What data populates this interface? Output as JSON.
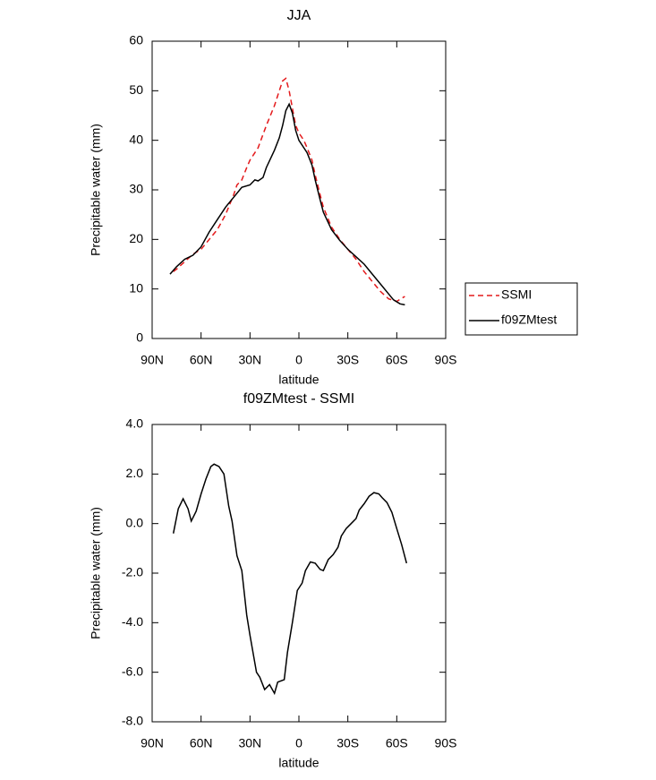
{
  "chart_data": [
    {
      "type": "line",
      "title": "JJA",
      "xlabel": "latitude",
      "ylabel": "Precipitable water (mm)",
      "xlim": [
        90,
        -90
      ],
      "xticks": [
        {
          "value": 90,
          "label": "90N"
        },
        {
          "value": 60,
          "label": "60N"
        },
        {
          "value": 30,
          "label": "30N"
        },
        0,
        {
          "value": -30,
          "label": "30S"
        },
        {
          "value": -60,
          "label": "60S"
        },
        {
          "value": -90,
          "label": "90S"
        }
      ],
      "ylim": [
        0,
        60
      ],
      "yticks": [
        0,
        10,
        20,
        30,
        40,
        50,
        60
      ],
      "legend": "right",
      "series": [
        {
          "name": "SSMI",
          "color": "#e41a1c",
          "line_style": "dashed",
          "x": [
            77,
            75,
            70,
            65,
            60,
            55,
            50,
            45,
            40,
            38,
            35,
            32,
            30,
            25,
            20,
            15,
            12,
            10,
            8,
            6,
            4,
            2,
            0,
            -3,
            -5,
            -8,
            -10,
            -13,
            -15,
            -20,
            -25,
            -30,
            -35,
            -40,
            -45,
            -50,
            -55,
            -60,
            -65
          ],
          "values": [
            13.5,
            14,
            15.5,
            17,
            18,
            20,
            22,
            25,
            29,
            31,
            32,
            34.5,
            36,
            38.5,
            43,
            47,
            50,
            52,
            52.5,
            50,
            46.5,
            43,
            41.5,
            40,
            38.5,
            36,
            33,
            29,
            26.5,
            22.5,
            20,
            18,
            16,
            13.5,
            11.5,
            9.5,
            8,
            7.5,
            8.5
          ]
        },
        {
          "name": "f09ZMtest",
          "color": "#000000",
          "line_style": "solid",
          "x": [
            79,
            75,
            70,
            65,
            60,
            55,
            50,
            45,
            40,
            35,
            30,
            27,
            25,
            22,
            20,
            15,
            12,
            10,
            8,
            6,
            4,
            2,
            0,
            -3,
            -5,
            -8,
            -10,
            -13,
            -15,
            -20,
            -25,
            -30,
            -35,
            -40,
            -45,
            -50,
            -55,
            -58,
            -62,
            -65
          ],
          "values": [
            13,
            14.5,
            16,
            16.8,
            18.5,
            21.5,
            24,
            26.5,
            28.5,
            30.5,
            31,
            32,
            31.8,
            32.5,
            34.5,
            38,
            40.5,
            43,
            46,
            47.3,
            45.5,
            42,
            40,
            38.5,
            37.5,
            35,
            32,
            28,
            25.5,
            22,
            19.8,
            18,
            16.5,
            15,
            13,
            11,
            9,
            7.8,
            7,
            6.8
          ]
        }
      ]
    },
    {
      "type": "line",
      "title": "f09ZMtest - SSMI",
      "xlabel": "latitude",
      "ylabel": "Precipitable water (mm)",
      "xlim": [
        90,
        -90
      ],
      "xticks": [
        {
          "value": 90,
          "label": "90N"
        },
        {
          "value": 60,
          "label": "60N"
        },
        {
          "value": 30,
          "label": "30N"
        },
        0,
        {
          "value": -30,
          "label": "30S"
        },
        {
          "value": -60,
          "label": "60S"
        },
        {
          "value": -90,
          "label": "90S"
        }
      ],
      "ylim": [
        -8,
        4
      ],
      "yticks": [
        {
          "value": -8,
          "label": "-8.0"
        },
        {
          "value": -6,
          "label": "-6.0"
        },
        {
          "value": -4,
          "label": "-4.0"
        },
        {
          "value": -2,
          "label": "-2.0"
        },
        {
          "value": 0,
          "label": "0.0"
        },
        {
          "value": 2,
          "label": "2.0"
        },
        {
          "value": 4,
          "label": "4.0"
        }
      ],
      "series": [
        {
          "color": "#000000",
          "line_style": "solid",
          "x": [
            77,
            74,
            71,
            68,
            66,
            63,
            60,
            57,
            54,
            52,
            49,
            46,
            43,
            41,
            38,
            35,
            32,
            30,
            26,
            24,
            21,
            18,
            15,
            13,
            9,
            7,
            4,
            1,
            -2,
            -4,
            -7,
            -10,
            -13,
            -15,
            -18,
            -21,
            -24,
            -26,
            -29,
            -32,
            -35,
            -37,
            -40,
            -43,
            -46,
            -49,
            -51,
            -54,
            -57,
            -60,
            -63,
            -66
          ],
          "values": [
            -0.4,
            0.6,
            1.0,
            0.6,
            0.1,
            0.5,
            1.2,
            1.8,
            2.3,
            2.4,
            2.3,
            2.0,
            0.7,
            0.1,
            -1.3,
            -1.9,
            -3.7,
            -4.5,
            -6.0,
            -6.2,
            -6.7,
            -6.5,
            -6.85,
            -6.4,
            -6.3,
            -5.2,
            -4.0,
            -2.7,
            -2.4,
            -1.9,
            -1.55,
            -1.6,
            -1.85,
            -1.9,
            -1.45,
            -1.25,
            -0.95,
            -0.5,
            -0.2,
            0.0,
            0.2,
            0.55,
            0.8,
            1.1,
            1.25,
            1.2,
            1.05,
            0.85,
            0.45,
            -0.2,
            -0.85,
            -1.6
          ]
        }
      ]
    }
  ]
}
